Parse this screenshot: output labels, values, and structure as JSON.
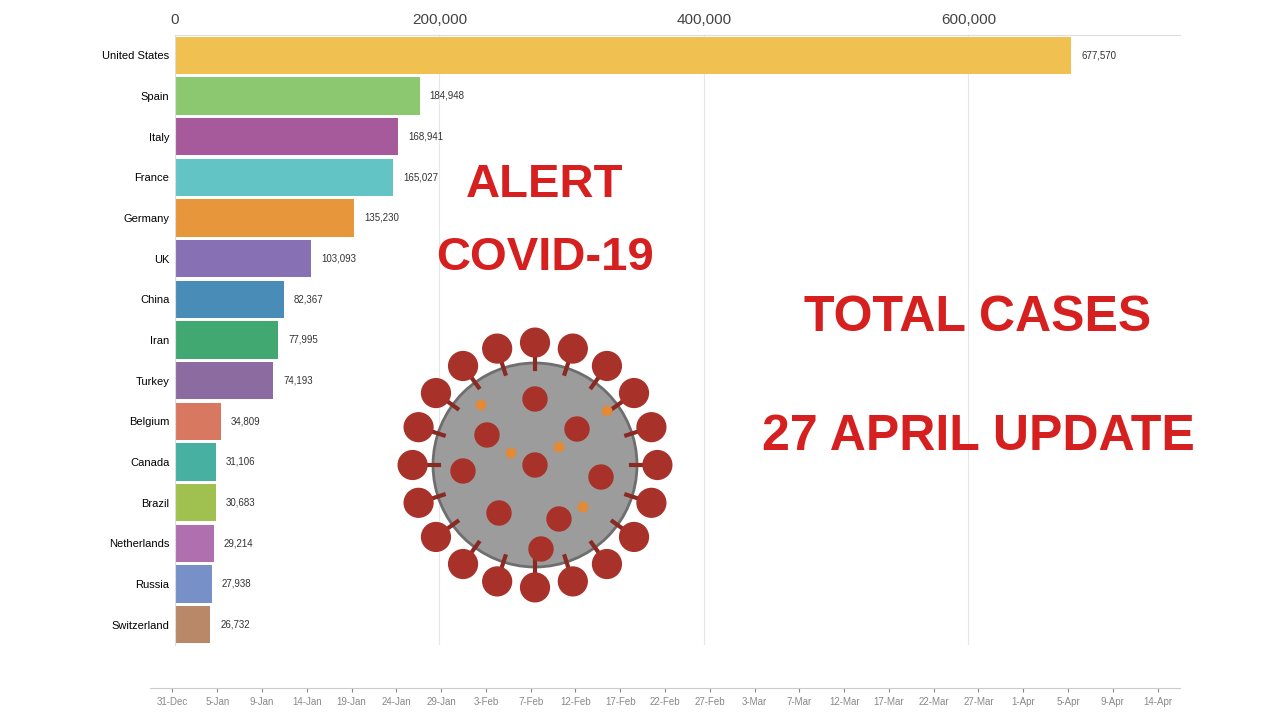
{
  "chart_data": [
    {
      "type": "bar",
      "orientation": "horizontal",
      "categories": [
        "United States",
        "Spain",
        "Italy",
        "France",
        "Germany",
        "UK",
        "China",
        "Iran",
        "Turkey",
        "Belgium",
        "Canada",
        "Brazil",
        "Netherlands",
        "Russia",
        "Switzerland"
      ],
      "values": [
        677570,
        184948,
        168941,
        165027,
        135230,
        103093,
        82367,
        77995,
        74193,
        34809,
        31106,
        30683,
        29214,
        27938,
        26732
      ],
      "value_labels": [
        "677,570",
        "184,948",
        "168,941",
        "165,027",
        "135,230",
        "103,093",
        "82,367",
        "77,995",
        "74,193",
        "34,809",
        "31,106",
        "30,683",
        "29,214",
        "27,938",
        "26,732"
      ],
      "colors": [
        "#f0c050",
        "#8cc870",
        "#a65a9c",
        "#62c4c4",
        "#e8963c",
        "#8870b4",
        "#4a8cb8",
        "#40a870",
        "#8c6ca0",
        "#d87860",
        "#48b0a0",
        "#a0c050",
        "#b070b0",
        "#7890c8",
        "#b88868"
      ],
      "xlim": [
        0,
        760000
      ],
      "xticks": [
        0,
        {
          "value": 200000,
          "label": "200,000"
        },
        {
          "value": 400000,
          "label": "400,000"
        },
        {
          "value": 600000,
          "label": "600,000"
        }
      ],
      "grid": true,
      "data_labels": true,
      "annotations": [
        "ALERT",
        "COVID-19",
        "TOTAL CASES",
        "27 APRIL UPDATE"
      ]
    },
    {
      "type": "timeline",
      "tick_labels": "x",
      "categories": [
        "31-Dec",
        "5-Jan",
        "9-Jan",
        "14-Jan",
        "19-Jan",
        "24-Jan",
        "29-Jan",
        "3-Feb",
        "7-Feb",
        "12-Feb",
        "17-Feb",
        "22-Feb",
        "27-Feb",
        "3-Mar",
        "7-Mar",
        "12-Mar",
        "17-Mar",
        "22-Mar",
        "27-Mar",
        "1-Apr",
        "5-Apr",
        "9-Apr",
        "14-Apr"
      ]
    }
  ]
}
